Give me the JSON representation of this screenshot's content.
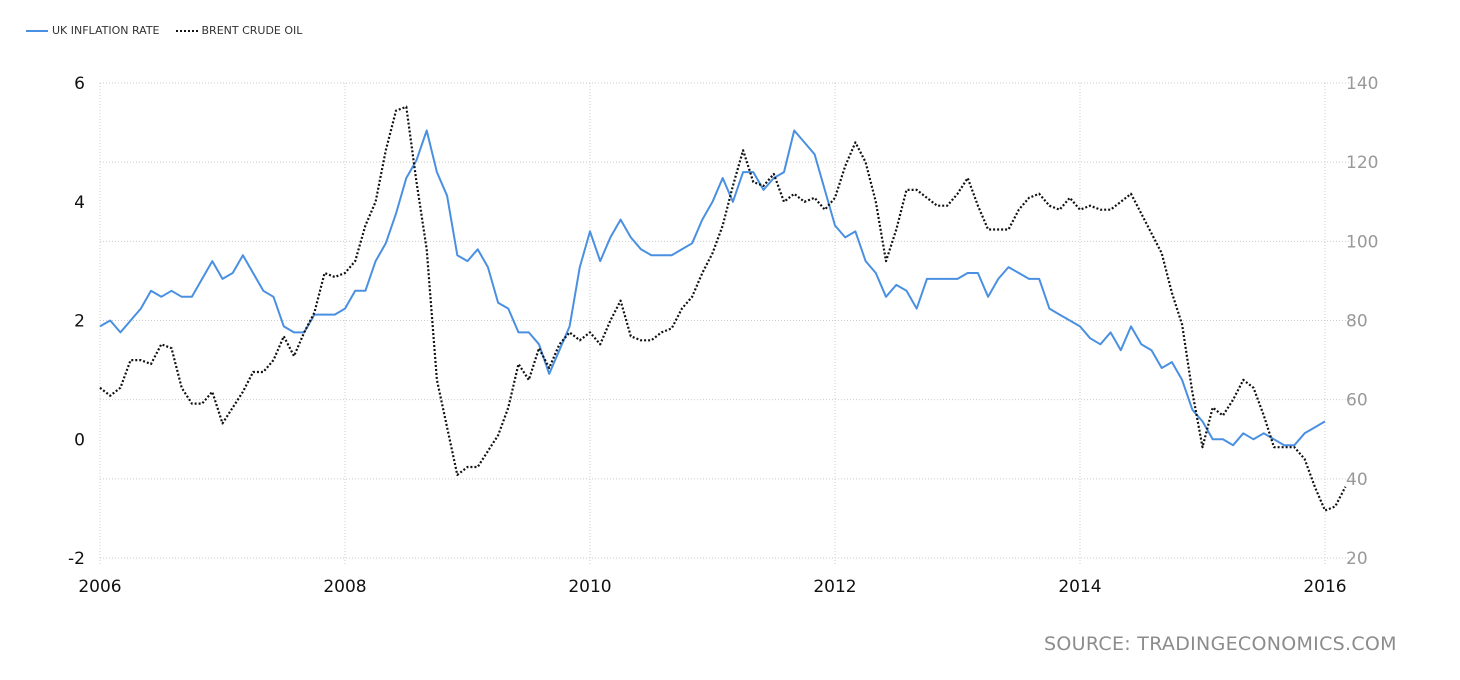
{
  "legend": {
    "series_1": "UK INFLATION RATE",
    "series_2": "BRENT CRUDE OIL"
  },
  "source": "SOURCE: TRADINGECONOMICS.COM",
  "colors": {
    "inflation": "#4a90e2",
    "oil": "#111111",
    "grid": "#cccccc",
    "right_axis_text": "#999999"
  },
  "chart_data": {
    "type": "line",
    "x_ticks": [
      "2006",
      "2008",
      "2010",
      "2012",
      "2014",
      "2016"
    ],
    "x_range": [
      2006.0,
      2016.25
    ],
    "y_left": {
      "ticks": [
        "6",
        "4",
        "2",
        "0",
        "-2"
      ],
      "range": [
        -2,
        6
      ]
    },
    "y_right": {
      "ticks": [
        "140",
        "120",
        "100",
        "80",
        "60",
        "40",
        "20"
      ],
      "range": [
        20,
        140
      ]
    },
    "grid": "dotted",
    "legend_position": "top-left",
    "series": [
      {
        "name": "UK INFLATION RATE",
        "axis": "left",
        "x_start": 2006.0,
        "x_step_months": 1,
        "values": [
          1.9,
          2.0,
          1.8,
          2.0,
          2.2,
          2.5,
          2.4,
          2.5,
          2.4,
          2.4,
          2.7,
          3.0,
          2.7,
          2.8,
          3.1,
          2.8,
          2.5,
          2.4,
          1.9,
          1.8,
          1.8,
          2.1,
          2.1,
          2.1,
          2.2,
          2.5,
          2.5,
          3.0,
          3.3,
          3.8,
          4.4,
          4.7,
          5.2,
          4.5,
          4.1,
          3.1,
          3.0,
          3.2,
          2.9,
          2.3,
          2.2,
          1.8,
          1.8,
          1.6,
          1.1,
          1.5,
          1.9,
          2.9,
          3.5,
          3.0,
          3.4,
          3.7,
          3.4,
          3.2,
          3.1,
          3.1,
          3.1,
          3.2,
          3.3,
          3.7,
          4.0,
          4.4,
          4.0,
          4.5,
          4.5,
          4.2,
          4.4,
          4.5,
          5.2,
          5.0,
          4.8,
          4.2,
          3.6,
          3.4,
          3.5,
          3.0,
          2.8,
          2.4,
          2.6,
          2.5,
          2.2,
          2.7,
          2.7,
          2.7,
          2.7,
          2.8,
          2.8,
          2.4,
          2.7,
          2.9,
          2.8,
          2.7,
          2.7,
          2.2,
          2.1,
          2.0,
          1.9,
          1.7,
          1.6,
          1.8,
          1.5,
          1.9,
          1.6,
          1.5,
          1.2,
          1.3,
          1.0,
          0.5,
          0.3,
          0.0,
          0.0,
          -0.1,
          0.1,
          0.0,
          0.1,
          0.0,
          -0.1,
          -0.1,
          0.1,
          0.2,
          0.3
        ]
      },
      {
        "name": "BRENT CRUDE OIL",
        "axis": "right",
        "x_start": 2006.0,
        "x_step_months": 1,
        "values": [
          63,
          61,
          63,
          70,
          70,
          69,
          74,
          73,
          63,
          59,
          59,
          62,
          54,
          58,
          62,
          67,
          67,
          70,
          76,
          71,
          77,
          82,
          92,
          91,
          92,
          95,
          104,
          110,
          123,
          133,
          134,
          115,
          98,
          65,
          53,
          41,
          43,
          43,
          47,
          51,
          58,
          69,
          65,
          73,
          68,
          74,
          77,
          75,
          77,
          74,
          80,
          85,
          76,
          75,
          75,
          77,
          78,
          83,
          86,
          92,
          97,
          104,
          114,
          123,
          115,
          114,
          117,
          110,
          112,
          110,
          111,
          108,
          111,
          119,
          125,
          120,
          110,
          95,
          103,
          113,
          113,
          111,
          109,
          109,
          112,
          116,
          109,
          103,
          103,
          103,
          108,
          111,
          112,
          109,
          108,
          111,
          108,
          109,
          108,
          108,
          110,
          112,
          107,
          102,
          97,
          87,
          79,
          62,
          48,
          58,
          56,
          60,
          65,
          63,
          56,
          48,
          48,
          48,
          45,
          38,
          32,
          33,
          38
        ]
      }
    ]
  }
}
